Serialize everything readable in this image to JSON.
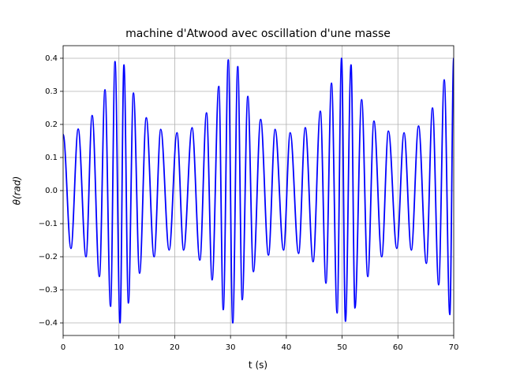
{
  "chart_data": {
    "type": "line",
    "title": "machine d'Atwood avec oscillation d'une masse",
    "x_label": "t (s)",
    "y_label": "θ(rad)",
    "x": [
      0,
      1.4,
      2.7,
      4.1,
      5.2,
      6.5,
      7.5,
      8.5,
      9.3,
      10.2,
      10.9,
      11.7,
      12.6,
      13.7,
      14.9,
      16.3,
      17.5,
      19.0,
      20.4,
      21.6,
      23.1,
      24.5,
      25.7,
      26.7,
      27.9,
      28.7,
      29.6,
      30.4,
      31.3,
      32.1,
      33.1,
      34.1,
      35.4,
      36.8,
      38.0,
      39.5,
      40.7,
      42.2,
      43.4,
      44.8,
      46.1,
      47.1,
      48.1,
      49.1,
      49.9,
      50.6,
      51.6,
      52.3,
      53.5,
      54.6,
      55.7,
      57.1,
      58.3,
      59.8,
      61.1,
      62.4,
      63.7,
      65.1,
      66.2,
      67.3,
      68.3,
      69.3,
      70
    ],
    "series": [
      {
        "name": "θ",
        "color": "#0000ff",
        "values": [
          0.17,
          -0.175,
          0.186,
          -0.2,
          0.227,
          -0.26,
          0.305,
          -0.35,
          0.39,
          -0.4,
          0.38,
          -0.34,
          0.295,
          -0.25,
          0.22,
          -0.2,
          0.185,
          -0.18,
          0.175,
          -0.18,
          0.19,
          -0.21,
          0.235,
          -0.27,
          0.315,
          -0.36,
          0.395,
          -0.4,
          0.375,
          -0.33,
          0.285,
          -0.245,
          0.215,
          -0.195,
          0.185,
          -0.18,
          0.175,
          -0.19,
          0.19,
          -0.215,
          0.24,
          -0.28,
          0.325,
          -0.37,
          0.4,
          -0.395,
          0.38,
          -0.355,
          0.275,
          -0.26,
          0.21,
          -0.2,
          0.18,
          -0.175,
          0.175,
          -0.18,
          0.195,
          -0.22,
          0.25,
          -0.285,
          0.335,
          -0.375,
          0.4
        ]
      }
    ],
    "xlim": [
      0,
      70
    ],
    "ylim": [
      -0.438,
      0.438
    ],
    "xticks": [
      0,
      10,
      20,
      30,
      40,
      50,
      60,
      70
    ],
    "yticks": [
      {
        "value": -0.4,
        "label": "−0.4"
      },
      {
        "value": -0.3,
        "label": "−0.3"
      },
      {
        "value": -0.2,
        "label": "−0.2"
      },
      {
        "value": -0.1,
        "label": "−0.1"
      },
      {
        "value": 0,
        "label": "0.0"
      },
      {
        "value": 0.1,
        "label": "0.1"
      },
      {
        "value": 0.2,
        "label": "0.2"
      },
      {
        "value": 0.3,
        "label": "0.3"
      },
      {
        "value": 0.4,
        "label": "0.4"
      }
    ],
    "grid": true
  }
}
